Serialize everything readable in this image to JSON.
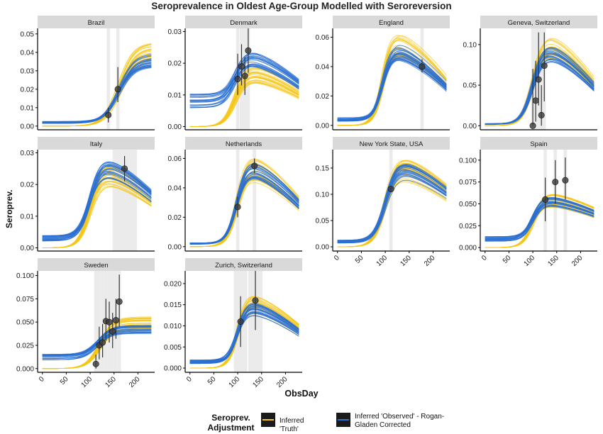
{
  "title": "Seroprevalence in Oldest Age-Group Modelled with Seroreversion",
  "xlabel": "ObsDay",
  "ylabel": "Seroprev.",
  "legend": {
    "title": "Seroprev. Adjustment",
    "items": [
      {
        "label": "Inferred 'Truth'",
        "color": "#f5c518"
      },
      {
        "label": "Inferred 'Observed' - Rogan-Gladen Corrected",
        "color": "#2a6fd1"
      }
    ]
  },
  "colors": {
    "truth": "#f5c518",
    "observed": "#2a6fd1",
    "strip": "#d9d9d9",
    "shade": "#ebebeb",
    "point": "#3a3a3a"
  },
  "chart_data": [
    {
      "type": "line",
      "panel": "Brazil",
      "xlim": [
        -10,
        235
      ],
      "ylim": [
        -0.002,
        0.053
      ],
      "yticks": [
        0.0,
        0.01,
        0.02,
        0.03,
        0.04,
        0.05
      ],
      "ytick_labels": [
        "0.00",
        "0.01",
        "0.02",
        "0.03",
        "0.04",
        "0.05"
      ],
      "xticks": [],
      "obs_days": [
        138,
        158
      ],
      "points": [
        {
          "x": 138,
          "y": 0.006,
          "lo": 0.002,
          "hi": 0.01
        },
        {
          "x": 158,
          "y": 0.02,
          "lo": 0.013,
          "hi": 0.032
        }
      ],
      "truth": {
        "base": 0.0,
        "mid": 160,
        "width": 16,
        "peak": 0.04,
        "decline": 0.0
      },
      "observed": {
        "base": 0.002,
        "mid": 160,
        "width": 16,
        "peak": 0.036,
        "decline": 0.0
      }
    },
    {
      "type": "line",
      "panel": "Denmark",
      "xlim": [
        -10,
        235
      ],
      "ylim": [
        -0.001,
        0.031
      ],
      "yticks": [
        0.0,
        0.01,
        0.02,
        0.03
      ],
      "ytick_labels": [
        "0.00",
        "0.01",
        "0.02",
        "0.03"
      ],
      "xticks": [],
      "obs_days": [
        100,
        108,
        115,
        122
      ],
      "points": [
        {
          "x": 100,
          "y": 0.015,
          "lo": 0.01,
          "hi": 0.023
        },
        {
          "x": 108,
          "y": 0.019,
          "lo": 0.013,
          "hi": 0.026
        },
        {
          "x": 115,
          "y": 0.016,
          "lo": 0.01,
          "hi": 0.022
        },
        {
          "x": 122,
          "y": 0.024,
          "lo": 0.017,
          "hi": 0.031
        }
      ],
      "truth": {
        "base": 0.0,
        "mid": 95,
        "width": 12,
        "peak": 0.018,
        "decline": 0.45
      },
      "observed": {
        "base": 0.008,
        "mid": 95,
        "width": 12,
        "peak": 0.023,
        "decline": 0.45
      }
    },
    {
      "type": "line",
      "panel": "England",
      "xlim": [
        -10,
        235
      ],
      "ylim": [
        -0.003,
        0.066
      ],
      "yticks": [
        0.0,
        0.02,
        0.04,
        0.06
      ],
      "ytick_labels": [
        "0.00",
        "0.02",
        "0.04",
        "0.06"
      ],
      "xticks": [],
      "obs_days": [
        177
      ],
      "points": [
        {
          "x": 177,
          "y": 0.04,
          "lo": 0.036,
          "hi": 0.045
        }
      ],
      "truth": {
        "base": 0.0,
        "mid": 95,
        "width": 10,
        "peak": 0.058,
        "decline": 0.55
      },
      "observed": {
        "base": 0.004,
        "mid": 95,
        "width": 10,
        "peak": 0.054,
        "decline": 0.55
      }
    },
    {
      "type": "line",
      "panel": "Geneva, Switzerland",
      "xlim": [
        -10,
        235
      ],
      "ylim": [
        -0.005,
        0.12
      ],
      "yticks": [
        0.0,
        0.05,
        0.1
      ],
      "ytick_labels": [
        "0.00",
        "0.05",
        "0.10"
      ],
      "xticks": [],
      "obs_days": [
        100,
        106,
        112,
        118,
        124
      ],
      "points": [
        {
          "x": 100,
          "y": 0.0,
          "lo": 0.0,
          "hi": 0.07
        },
        {
          "x": 106,
          "y": 0.031,
          "lo": 0.005,
          "hi": 0.08
        },
        {
          "x": 112,
          "y": 0.057,
          "lo": 0.025,
          "hi": 0.115
        },
        {
          "x": 118,
          "y": 0.013,
          "lo": 0.0,
          "hi": 0.05
        },
        {
          "x": 124,
          "y": 0.074,
          "lo": 0.03,
          "hi": 0.115
        }
      ],
      "truth": {
        "base": 0.0,
        "mid": 100,
        "width": 12,
        "peak": 0.105,
        "decline": 0.6
      },
      "observed": {
        "base": 0.002,
        "mid": 100,
        "width": 12,
        "peak": 0.098,
        "decline": 0.6
      }
    },
    {
      "type": "line",
      "panel": "Italy",
      "xlim": [
        -10,
        235
      ],
      "ylim": [
        -0.001,
        0.031
      ],
      "yticks": [
        0.0,
        0.01,
        0.02,
        0.03
      ],
      "ytick_labels": [
        "0.00",
        "0.01",
        "0.02",
        "0.03"
      ],
      "xticks": [],
      "obs_days": [],
      "shade": [
        [
          147,
          198
        ]
      ],
      "points": [
        {
          "x": 172,
          "y": 0.025,
          "lo": 0.021,
          "hi": 0.029
        }
      ],
      "truth": {
        "base": 0.0,
        "mid": 100,
        "width": 12,
        "peak": 0.025,
        "decline": 0.45
      },
      "observed": {
        "base": 0.003,
        "mid": 100,
        "width": 12,
        "peak": 0.027,
        "decline": 0.45
      }
    },
    {
      "type": "line",
      "panel": "Netherlands",
      "xlim": [
        -10,
        235
      ],
      "ylim": [
        -0.003,
        0.066
      ],
      "yticks": [
        0.0,
        0.02,
        0.04,
        0.06
      ],
      "ytick_labels": [
        "0.00",
        "0.02",
        "0.04",
        "0.06"
      ],
      "xticks": [],
      "obs_days": [
        100,
        135
      ],
      "points": [
        {
          "x": 100,
          "y": 0.027,
          "lo": 0.02,
          "hi": 0.034
        },
        {
          "x": 135,
          "y": 0.055,
          "lo": 0.05,
          "hi": 0.06
        }
      ],
      "truth": {
        "base": 0.0,
        "mid": 98,
        "width": 11,
        "peak": 0.057,
        "decline": 0.55
      },
      "observed": {
        "base": 0.002,
        "mid": 98,
        "width": 11,
        "peak": 0.057,
        "decline": 0.55
      }
    },
    {
      "type": "line",
      "panel": "New York State, USA",
      "xlim": [
        -10,
        235
      ],
      "ylim": [
        -0.008,
        0.185
      ],
      "yticks": [
        0.0,
        0.05,
        0.1,
        0.15
      ],
      "ytick_labels": [
        "0.00",
        "0.05",
        "0.10",
        "0.15"
      ],
      "xticks": [
        0,
        50,
        100,
        150,
        200
      ],
      "obs_days": [
        112
      ],
      "points": [
        {
          "x": 112,
          "y": 0.11,
          "lo": 0.105,
          "hi": 0.115
        }
      ],
      "truth": {
        "base": 0.0,
        "mid": 100,
        "width": 12,
        "peak": 0.16,
        "decline": 0.4
      },
      "observed": {
        "base": 0.01,
        "mid": 100,
        "width": 12,
        "peak": 0.155,
        "decline": 0.4
      }
    },
    {
      "type": "line",
      "panel": "Spain",
      "xlim": [
        -10,
        235
      ],
      "ylim": [
        -0.004,
        0.112
      ],
      "yticks": [
        0.0,
        0.025,
        0.05,
        0.075,
        0.1
      ],
      "ytick_labels": [
        "0.000",
        "0.025",
        "0.050",
        "0.075",
        "0.100"
      ],
      "xticks": [
        0,
        50,
        100,
        150,
        200
      ],
      "obs_days": [
        126,
        147,
        168
      ],
      "points": [
        {
          "x": 126,
          "y": 0.055,
          "lo": 0.03,
          "hi": 0.08
        },
        {
          "x": 147,
          "y": 0.075,
          "lo": 0.05,
          "hi": 0.1
        },
        {
          "x": 168,
          "y": 0.077,
          "lo": 0.055,
          "hi": 0.103
        }
      ],
      "truth": {
        "base": 0.0,
        "mid": 100,
        "width": 11,
        "peak": 0.058,
        "decline": 0.35
      },
      "observed": {
        "base": 0.01,
        "mid": 100,
        "width": 11,
        "peak": 0.056,
        "decline": 0.35
      }
    },
    {
      "type": "line",
      "panel": "Sweden",
      "xlim": [
        -10,
        235
      ],
      "ylim": [
        -0.004,
        0.105
      ],
      "yticks": [
        0.0,
        0.025,
        0.05,
        0.075,
        0.1
      ],
      "ytick_labels": [
        "0.000",
        "0.025",
        "0.050",
        "0.075",
        "0.100"
      ],
      "xticks": [
        0,
        50,
        100,
        150,
        200
      ],
      "obs_days": [
        112,
        119,
        126,
        133,
        140,
        147,
        154,
        161
      ],
      "points": [
        {
          "x": 112,
          "y": 0.005,
          "lo": 0.0,
          "hi": 0.015
        },
        {
          "x": 119,
          "y": 0.025,
          "lo": 0.01,
          "hi": 0.045
        },
        {
          "x": 126,
          "y": 0.028,
          "lo": 0.012,
          "hi": 0.048
        },
        {
          "x": 133,
          "y": 0.051,
          "lo": 0.03,
          "hi": 0.075
        },
        {
          "x": 140,
          "y": 0.05,
          "lo": 0.028,
          "hi": 0.072
        },
        {
          "x": 147,
          "y": 0.04,
          "lo": 0.022,
          "hi": 0.06
        },
        {
          "x": 154,
          "y": 0.052,
          "lo": 0.032,
          "hi": 0.075
        },
        {
          "x": 161,
          "y": 0.072,
          "lo": 0.045,
          "hi": 0.101
        }
      ],
      "truth": {
        "base": 0.0,
        "mid": 120,
        "width": 14,
        "peak": 0.048,
        "decline": 0.0
      },
      "observed": {
        "base": 0.012,
        "mid": 115,
        "width": 14,
        "peak": 0.042,
        "decline": 0.0
      }
    },
    {
      "type": "line",
      "panel": "Zurich, Switzerland",
      "xlim": [
        -10,
        235
      ],
      "ylim": [
        -0.001,
        0.023
      ],
      "yticks": [
        0.0,
        0.005,
        0.01,
        0.015,
        0.02
      ],
      "ytick_labels": [
        "0.000",
        "0.005",
        "0.010",
        "0.015",
        "0.020"
      ],
      "xticks": [
        0,
        50,
        100,
        150,
        200
      ],
      "obs_days": [],
      "shade": [
        [
          92,
          120
        ],
        [
          122,
          152
        ]
      ],
      "points": [
        {
          "x": 106,
          "y": 0.011,
          "lo": 0.005,
          "hi": 0.017
        },
        {
          "x": 137,
          "y": 0.016,
          "lo": 0.009,
          "hi": 0.023
        }
      ],
      "truth": {
        "base": 0.0,
        "mid": 100,
        "width": 10,
        "peak": 0.016,
        "decline": 0.5
      },
      "observed": {
        "base": 0.0015,
        "mid": 100,
        "width": 10,
        "peak": 0.015,
        "decline": 0.5
      }
    }
  ]
}
